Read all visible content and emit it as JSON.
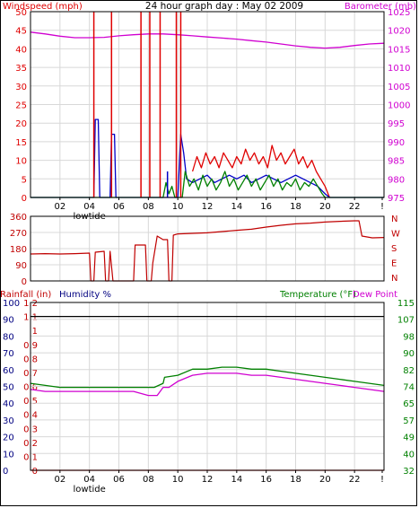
{
  "title": "24 hour graph day : May 02 2009",
  "colors": {
    "wind": "#e00000",
    "gust_bar": "#e00000",
    "windspeed_avg": "#0000c8",
    "wind_green": "#008000",
    "barometer": "#d000d0",
    "direction": "#c00000",
    "rain": "#c00000",
    "humidity": "#000080",
    "temperature": "#008000",
    "dewpoint": "#d000d0",
    "grid": "#d8d8d8",
    "axis": "#000000"
  },
  "x_ticks": [
    "02",
    "04",
    "06",
    "08",
    "10",
    "12",
    "14",
    "16",
    "18",
    "20",
    "22",
    "!"
  ],
  "x_note": "lowtide",
  "chart_data": [
    {
      "type": "line",
      "name": "wind-baro",
      "left_label": "Windspeed (mph)",
      "right_label": "Barometer (mb)",
      "xlim": [
        0,
        24
      ],
      "ylim_left": [
        0,
        50
      ],
      "ylim_right": [
        975,
        1025
      ],
      "left_ticks": [
        "0",
        "5",
        "10",
        "15",
        "20",
        "25",
        "30",
        "35",
        "40",
        "45",
        "50"
      ],
      "right_ticks": [
        "975",
        "980",
        "985",
        "990",
        "995",
        "1000",
        "1005",
        "1010",
        "1015",
        "1020",
        "1025"
      ],
      "series": [
        {
          "axis": "right",
          "color": "barometer",
          "points": [
            [
              0,
              1019.5
            ],
            [
              1,
              1019.0
            ],
            [
              2,
              1018.4
            ],
            [
              3,
              1018.0
            ],
            [
              4,
              1018.0
            ],
            [
              5,
              1018.1
            ],
            [
              6,
              1018.5
            ],
            [
              7,
              1018.8
            ],
            [
              8,
              1019.0
            ],
            [
              9,
              1019.0
            ],
            [
              10,
              1018.8
            ],
            [
              11,
              1018.5
            ],
            [
              12,
              1018.2
            ],
            [
              13,
              1017.9
            ],
            [
              14,
              1017.6
            ],
            [
              15,
              1017.2
            ],
            [
              16,
              1016.8
            ],
            [
              17,
              1016.3
            ],
            [
              18,
              1015.8
            ],
            [
              19,
              1015.4
            ],
            [
              20,
              1015.2
            ],
            [
              21,
              1015.4
            ],
            [
              22,
              1015.9
            ],
            [
              23,
              1016.3
            ],
            [
              24,
              1016.5
            ]
          ]
        },
        {
          "axis": "left",
          "color": "wind",
          "points": [
            [
              11.0,
              7
            ],
            [
              11.3,
              11
            ],
            [
              11.6,
              8
            ],
            [
              11.9,
              12
            ],
            [
              12.2,
              9
            ],
            [
              12.5,
              11
            ],
            [
              12.8,
              8
            ],
            [
              13.1,
              12
            ],
            [
              13.4,
              10
            ],
            [
              13.7,
              8
            ],
            [
              14.0,
              11
            ],
            [
              14.3,
              9
            ],
            [
              14.6,
              13
            ],
            [
              14.9,
              10
            ],
            [
              15.2,
              12
            ],
            [
              15.5,
              9
            ],
            [
              15.8,
              11
            ],
            [
              16.1,
              8
            ],
            [
              16.4,
              14
            ],
            [
              16.7,
              10
            ],
            [
              17.0,
              12
            ],
            [
              17.3,
              9
            ],
            [
              17.6,
              11
            ],
            [
              17.9,
              13
            ],
            [
              18.2,
              9
            ],
            [
              18.5,
              11
            ],
            [
              18.8,
              8
            ],
            [
              19.1,
              10
            ],
            [
              19.4,
              7
            ],
            [
              19.7,
              5
            ],
            [
              20.0,
              3
            ],
            [
              20.3,
              0
            ]
          ]
        },
        {
          "axis": "left",
          "color": "windspeed_avg",
          "points": [
            [
              0,
              0
            ],
            [
              4.3,
              0
            ],
            [
              4.4,
              21
            ],
            [
              4.6,
              21
            ],
            [
              4.7,
              0
            ],
            [
              5.4,
              0
            ],
            [
              5.5,
              17
            ],
            [
              5.7,
              17
            ],
            [
              5.8,
              0
            ],
            [
              10.0,
              0
            ],
            [
              10.2,
              17
            ],
            [
              10.4,
              12
            ],
            [
              10.6,
              5
            ],
            [
              11.0,
              4
            ],
            [
              11.5,
              5
            ],
            [
              12.0,
              6
            ],
            [
              12.5,
              4
            ],
            [
              13.0,
              5
            ],
            [
              13.5,
              6
            ],
            [
              14.0,
              5
            ],
            [
              14.5,
              6
            ],
            [
              15.0,
              4
            ],
            [
              15.5,
              5
            ],
            [
              16.0,
              6
            ],
            [
              16.5,
              5
            ],
            [
              17.0,
              4
            ],
            [
              17.5,
              5
            ],
            [
              18.0,
              6
            ],
            [
              18.5,
              5
            ],
            [
              19.0,
              4
            ],
            [
              19.5,
              3
            ],
            [
              20.0,
              1
            ],
            [
              20.3,
              0
            ],
            [
              24,
              0
            ]
          ]
        },
        {
          "axis": "left",
          "color": "wind_green",
          "points": [
            [
              0,
              0
            ],
            [
              9.0,
              0
            ],
            [
              9.2,
              4
            ],
            [
              9.4,
              1
            ],
            [
              9.6,
              3
            ],
            [
              9.8,
              0
            ],
            [
              10.3,
              0
            ],
            [
              10.5,
              7
            ],
            [
              10.8,
              3
            ],
            [
              11.1,
              5
            ],
            [
              11.4,
              2
            ],
            [
              11.7,
              6
            ],
            [
              12.0,
              3
            ],
            [
              12.3,
              5
            ],
            [
              12.6,
              2
            ],
            [
              12.9,
              4
            ],
            [
              13.2,
              7
            ],
            [
              13.5,
              3
            ],
            [
              13.8,
              5
            ],
            [
              14.1,
              2
            ],
            [
              14.4,
              4
            ],
            [
              14.7,
              6
            ],
            [
              15.0,
              3
            ],
            [
              15.3,
              5
            ],
            [
              15.6,
              2
            ],
            [
              15.9,
              4
            ],
            [
              16.2,
              6
            ],
            [
              16.5,
              3
            ],
            [
              16.8,
              5
            ],
            [
              17.1,
              2
            ],
            [
              17.4,
              4
            ],
            [
              17.7,
              3
            ],
            [
              18.0,
              5
            ],
            [
              18.3,
              2
            ],
            [
              18.6,
              4
            ],
            [
              18.9,
              3
            ],
            [
              19.2,
              5
            ],
            [
              19.5,
              3
            ],
            [
              19.8,
              1
            ],
            [
              20.0,
              0
            ],
            [
              24,
              0
            ]
          ]
        }
      ],
      "spikes": [
        {
          "x": 4.3,
          "y": 50,
          "color": "gust_bar"
        },
        {
          "x": 5.5,
          "y": 50,
          "color": "gust_bar"
        },
        {
          "x": 7.5,
          "y": 50,
          "color": "gust_bar"
        },
        {
          "x": 8.1,
          "y": 50,
          "color": "gust_bar"
        },
        {
          "x": 8.8,
          "y": 50,
          "color": "gust_bar"
        },
        {
          "x": 9.9,
          "y": 50,
          "color": "gust_bar"
        },
        {
          "x": 10.2,
          "y": 50,
          "color": "gust_bar"
        },
        {
          "x": 9.3,
          "y": 7,
          "color": "windspeed_avg"
        }
      ]
    },
    {
      "type": "line",
      "name": "wind-direction",
      "xlim": [
        0,
        24
      ],
      "ylim": [
        0,
        360
      ],
      "left_ticks": [
        "0",
        "90",
        "180",
        "270",
        "360"
      ],
      "right_ticks": [
        "N",
        "E",
        "S",
        "W",
        "N"
      ],
      "series": [
        {
          "color": "direction",
          "points": [
            [
              0,
              150
            ],
            [
              1,
              152
            ],
            [
              2,
              150
            ],
            [
              3,
              152
            ],
            [
              4,
              155
            ],
            [
              4.1,
              0
            ],
            [
              4.3,
              0
            ],
            [
              4.4,
              160
            ],
            [
              5.0,
              165
            ],
            [
              5.1,
              0
            ],
            [
              5.3,
              0
            ],
            [
              5.4,
              165
            ],
            [
              5.6,
              0
            ],
            [
              7.0,
              0
            ],
            [
              7.1,
              200
            ],
            [
              7.8,
              200
            ],
            [
              7.9,
              0
            ],
            [
              8.2,
              0
            ],
            [
              8.3,
              100
            ],
            [
              8.6,
              250
            ],
            [
              9.0,
              230
            ],
            [
              9.3,
              230
            ],
            [
              9.4,
              0
            ],
            [
              9.6,
              0
            ],
            [
              9.7,
              255
            ],
            [
              10,
              262
            ],
            [
              11,
              265
            ],
            [
              12,
              268
            ],
            [
              13,
              275
            ],
            [
              14,
              282
            ],
            [
              15,
              288
            ],
            [
              16,
              300
            ],
            [
              17,
              310
            ],
            [
              18,
              318
            ],
            [
              19,
              322
            ],
            [
              20,
              328
            ],
            [
              21,
              332
            ],
            [
              22,
              335
            ],
            [
              22.3,
              335
            ],
            [
              22.5,
              250
            ],
            [
              23.2,
              240
            ],
            [
              24,
              242
            ]
          ]
        }
      ]
    },
    {
      "type": "line",
      "name": "rain-humidity-temp",
      "rain_label": "Rainfall (in)",
      "humidity_label": "Humidity %",
      "temperature_label": "Temperature (°F)",
      "dewpoint_label": "Dew Point",
      "xlim": [
        0,
        24
      ],
      "ylim_rain": [
        0,
        1.2
      ],
      "ylim_humidity": [
        0,
        100
      ],
      "ylim_temp": [
        32,
        115
      ],
      "rain_ticks": [
        "0",
        "0.1",
        "0.2",
        "0.3",
        "0.4",
        "0.5",
        "0.6",
        "0.7",
        "0.8",
        "0.9",
        "1",
        "1.1",
        "1.2"
      ],
      "humidity_ticks": [
        "0",
        "10",
        "20",
        "30",
        "40",
        "50",
        "60",
        "70",
        "80",
        "90",
        "100"
      ],
      "temp_ticks": [
        "32",
        "40",
        "49",
        "57",
        "65",
        "74",
        "82",
        "90",
        "98",
        "107",
        "115"
      ],
      "series": [
        {
          "color": "rain",
          "axis": "rain",
          "points": [
            [
              0,
              1.1
            ],
            [
              24,
              1.1
            ]
          ]
        },
        {
          "color": "rain",
          "axis": "rain",
          "points": [
            [
              0,
              0
            ],
            [
              24,
              0
            ]
          ]
        },
        {
          "color": "temperature",
          "axis": "temp",
          "points": [
            [
              0,
              75
            ],
            [
              1,
              74
            ],
            [
              2,
              73
            ],
            [
              3,
              73
            ],
            [
              4,
              73
            ],
            [
              5,
              73
            ],
            [
              6,
              73
            ],
            [
              7,
              73
            ],
            [
              8,
              73
            ],
            [
              8.4,
              73
            ],
            [
              9,
              75
            ],
            [
              9.1,
              78
            ],
            [
              10,
              79
            ],
            [
              11,
              82
            ],
            [
              12,
              82
            ],
            [
              13,
              83
            ],
            [
              14,
              83
            ],
            [
              15,
              82
            ],
            [
              16,
              82
            ],
            [
              17,
              81
            ],
            [
              18,
              80
            ],
            [
              19,
              79
            ],
            [
              20,
              78
            ],
            [
              21,
              77
            ],
            [
              22,
              76
            ],
            [
              23,
              75
            ],
            [
              24,
              74
            ]
          ]
        },
        {
          "color": "dewpoint",
          "axis": "temp",
          "points": [
            [
              0,
              72
            ],
            [
              1,
              71
            ],
            [
              2,
              71
            ],
            [
              3,
              71
            ],
            [
              4,
              71
            ],
            [
              5,
              71
            ],
            [
              6,
              71
            ],
            [
              7,
              71
            ],
            [
              8,
              69
            ],
            [
              8.6,
              69
            ],
            [
              9.0,
              73
            ],
            [
              9.4,
              73
            ],
            [
              10,
              76
            ],
            [
              11,
              79
            ],
            [
              12,
              80
            ],
            [
              13,
              80
            ],
            [
              14,
              80
            ],
            [
              15,
              79
            ],
            [
              16,
              79
            ],
            [
              17,
              78
            ],
            [
              18,
              77
            ],
            [
              19,
              76
            ],
            [
              20,
              75
            ],
            [
              21,
              74
            ],
            [
              22,
              73
            ],
            [
              23,
              72
            ],
            [
              24,
              71
            ]
          ]
        }
      ]
    }
  ]
}
